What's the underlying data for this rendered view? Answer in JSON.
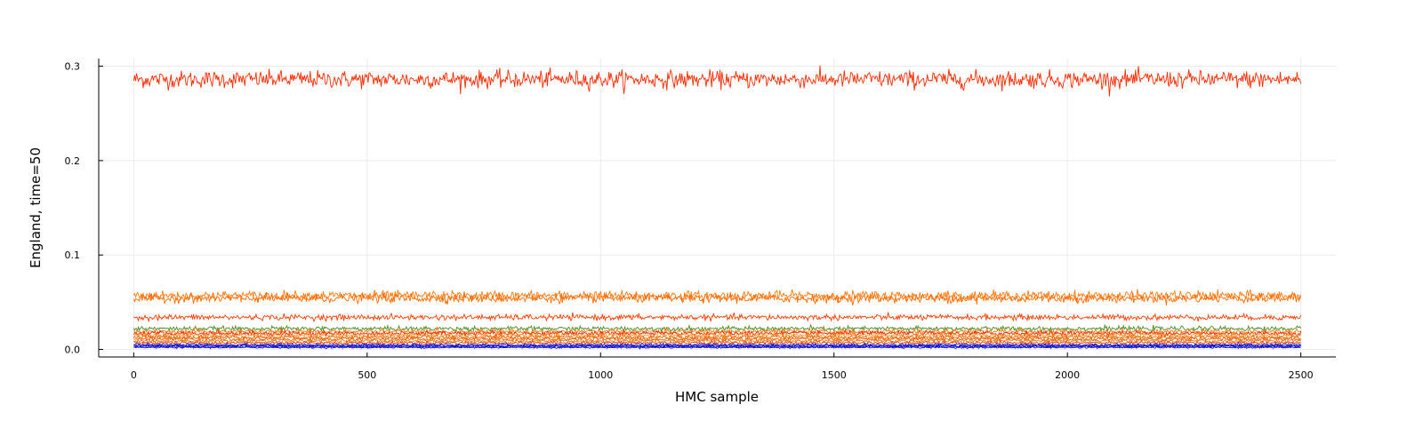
{
  "chart_data": {
    "type": "line",
    "title": "",
    "xlabel": "HMC sample",
    "ylabel": "England, time=50",
    "xlim": [
      -75,
      2575
    ],
    "ylim": [
      -0.008,
      0.308
    ],
    "xticks": [
      0,
      500,
      1000,
      1500,
      2000,
      2500
    ],
    "yticks": [
      0.0,
      0.1,
      0.2,
      0.3
    ],
    "ytick_labels": [
      "0.0",
      "0.1",
      "0.2",
      "0.3"
    ],
    "grid": true,
    "legend": "none",
    "samples": 2500,
    "series": [
      {
        "mean": 0.286,
        "noise": 0.0045,
        "color": "#ff2a00"
      },
      {
        "mean": 0.057,
        "noise": 0.0025,
        "color": "#ff7a10"
      },
      {
        "mean": 0.054,
        "noise": 0.0022,
        "color": "#ff6a00"
      },
      {
        "mean": 0.034,
        "noise": 0.0015,
        "color": "#ff3c00"
      },
      {
        "mean": 0.022,
        "noise": 0.0012,
        "color": "#4a8c1c"
      },
      {
        "mean": 0.019,
        "noise": 0.0012,
        "color": "#ff7a10"
      },
      {
        "mean": 0.017,
        "noise": 0.0012,
        "color": "#ff2200"
      },
      {
        "mean": 0.015,
        "noise": 0.0011,
        "color": "#ff9a30"
      },
      {
        "mean": 0.013,
        "noise": 0.001,
        "color": "#e86a00"
      },
      {
        "mean": 0.011,
        "noise": 0.001,
        "color": "#ff5a00"
      },
      {
        "mean": 0.009,
        "noise": 0.0009,
        "color": "#d98020"
      },
      {
        "mean": 0.007,
        "noise": 0.0008,
        "color": "#ff4000"
      },
      {
        "mean": 0.005,
        "noise": 0.0007,
        "color": "#2a2ae0"
      },
      {
        "mean": 0.004,
        "noise": 0.0006,
        "color": "#0000cc"
      },
      {
        "mean": 0.003,
        "noise": 0.0005,
        "color": "#0a0ab0"
      },
      {
        "mean": 0.002,
        "noise": 0.0004,
        "color": "#1010d0"
      }
    ]
  }
}
